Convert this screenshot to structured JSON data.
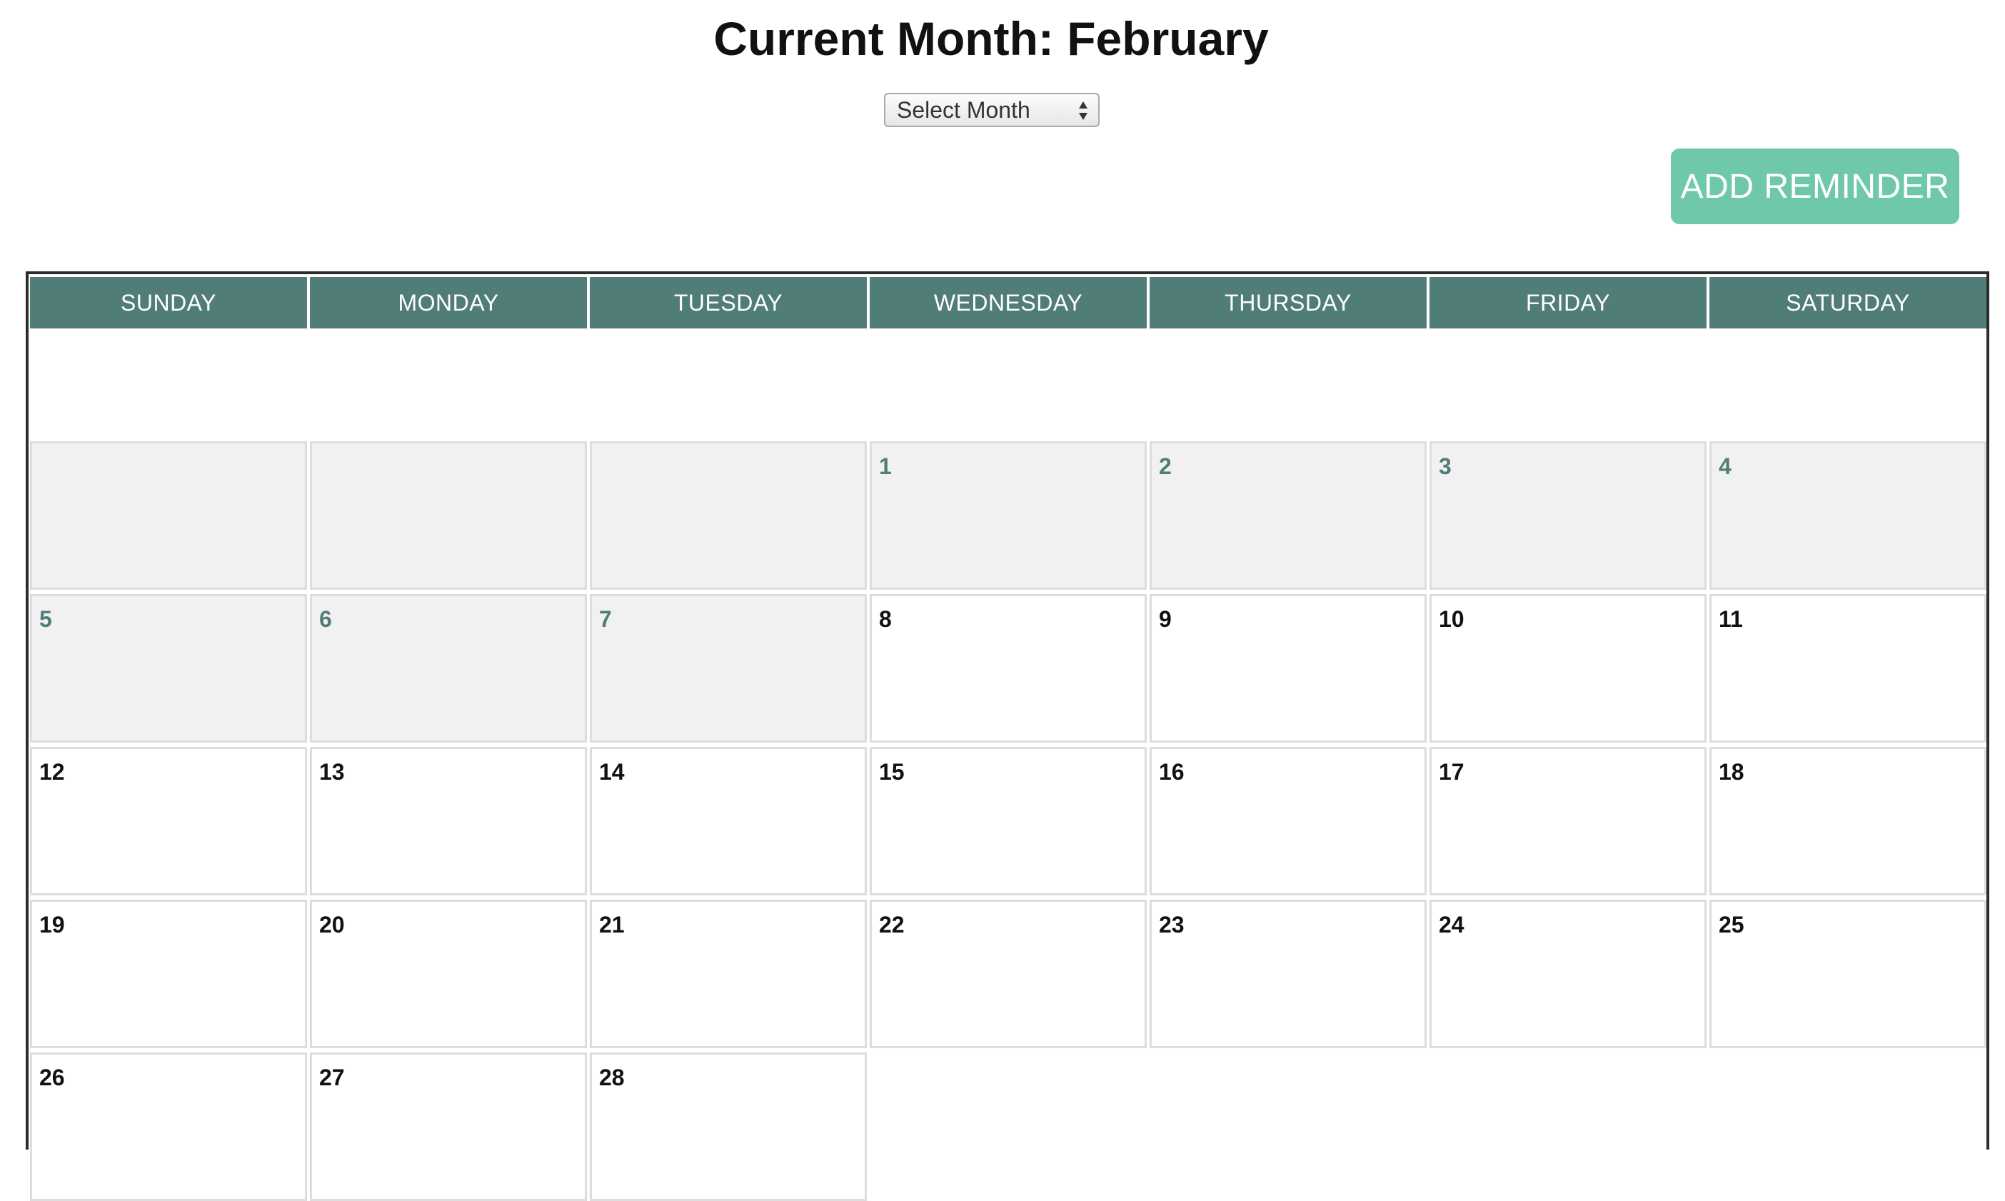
{
  "header": {
    "title": "Current Month: February"
  },
  "month_select": {
    "selected": "Select Month",
    "icon": "select-arrows-icon"
  },
  "add_reminder": {
    "label": "ADD REMINDER"
  },
  "colors": {
    "header_bg": "#517d79",
    "button_bg": "#6fc9a9",
    "muted_cell_bg": "#f1f1f1",
    "muted_number": "#517d79",
    "cell_border": "#dddddd"
  },
  "calendar": {
    "weekdays": [
      "SUNDAY",
      "MONDAY",
      "TUESDAY",
      "WEDNESDAY",
      "THURSDAY",
      "FRIDAY",
      "SATURDAY"
    ],
    "weeks": [
      [
        {
          "day": "",
          "muted": true
        },
        {
          "day": "",
          "muted": true
        },
        {
          "day": "",
          "muted": true
        },
        {
          "day": "1",
          "muted": true
        },
        {
          "day": "2",
          "muted": true
        },
        {
          "day": "3",
          "muted": true
        },
        {
          "day": "4",
          "muted": true
        }
      ],
      [
        {
          "day": "5",
          "muted": true
        },
        {
          "day": "6",
          "muted": true
        },
        {
          "day": "7",
          "muted": true
        },
        {
          "day": "8",
          "muted": false
        },
        {
          "day": "9",
          "muted": false
        },
        {
          "day": "10",
          "muted": false
        },
        {
          "day": "11",
          "muted": false
        }
      ],
      [
        {
          "day": "12",
          "muted": false
        },
        {
          "day": "13",
          "muted": false
        },
        {
          "day": "14",
          "muted": false
        },
        {
          "day": "15",
          "muted": false
        },
        {
          "day": "16",
          "muted": false
        },
        {
          "day": "17",
          "muted": false
        },
        {
          "day": "18",
          "muted": false
        }
      ],
      [
        {
          "day": "19",
          "muted": false
        },
        {
          "day": "20",
          "muted": false
        },
        {
          "day": "21",
          "muted": false
        },
        {
          "day": "22",
          "muted": false
        },
        {
          "day": "23",
          "muted": false
        },
        {
          "day": "24",
          "muted": false
        },
        {
          "day": "25",
          "muted": false
        }
      ],
      [
        {
          "day": "26",
          "muted": false
        },
        {
          "day": "27",
          "muted": false
        },
        {
          "day": "28",
          "muted": false
        }
      ]
    ]
  }
}
